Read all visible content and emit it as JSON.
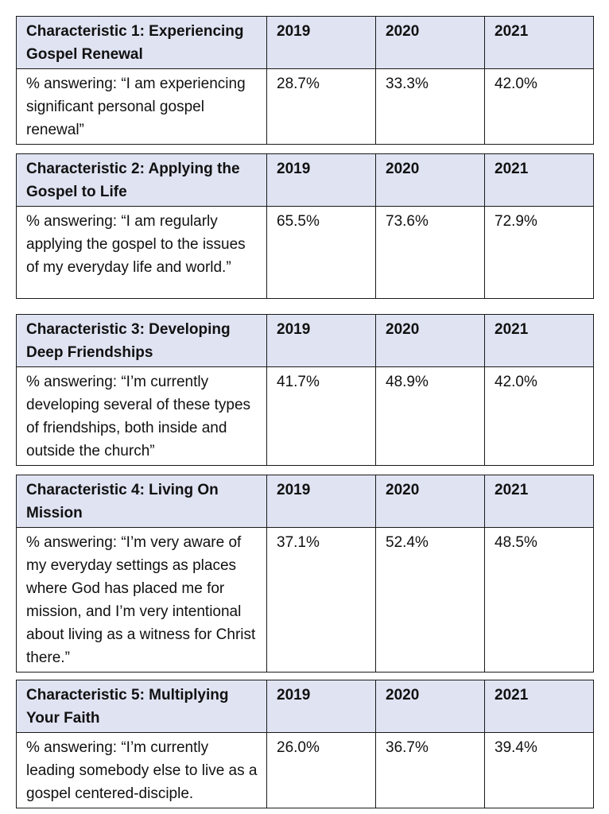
{
  "years": [
    "2019",
    "2020",
    "2021"
  ],
  "tables": [
    {
      "title": "Characteristic 1: Experiencing Gospel Renewal",
      "statement": "% answering: “I am experiencing significant personal gospel renewal”",
      "values": [
        "28.7%",
        "33.3%",
        "42.0%"
      ]
    },
    {
      "title": "Characteristic 2: Applying the Gospel to Life",
      "statement": "% answering: “I am regularly applying the gospel to the issues of my everyday life and world.”",
      "values": [
        "65.5%",
        "73.6%",
        "72.9%"
      ]
    },
    {
      "title": "Characteristic 3: Developing Deep Friendships",
      "statement": "% answering: “I’m currently developing several of these types of friendships, both inside and outside the church”",
      "values": [
        "41.7%",
        "48.9%",
        "42.0%"
      ]
    },
    {
      "title": "Characteristic 4: Living On Mission",
      "statement": "% answering: “I’m very aware of my everyday settings as places where God has placed me for mission, and I’m very intentional about living as a witness for Christ there.”",
      "values": [
        "37.1%",
        "52.4%",
        "48.5%"
      ]
    },
    {
      "title": "Characteristic 5: Multiplying Your Faith",
      "statement": "% answering: “I’m currently leading somebody else to live as a gospel centered-disciple.",
      "values": [
        "26.0%",
        "36.7%",
        "39.4%"
      ]
    }
  ]
}
